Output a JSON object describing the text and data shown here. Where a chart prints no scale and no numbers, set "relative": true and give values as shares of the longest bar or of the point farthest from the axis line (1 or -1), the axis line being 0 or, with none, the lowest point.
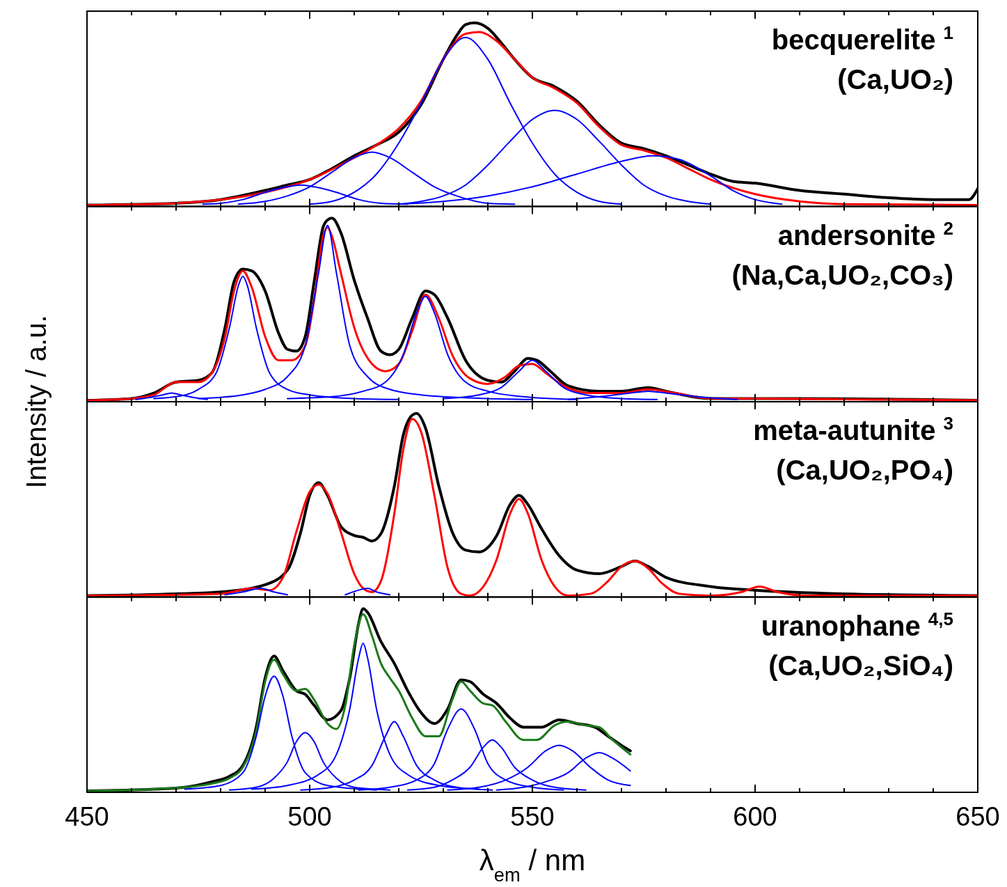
{
  "chart_data": [
    {
      "type": "line",
      "relative": true,
      "title": "becquerelite $^{1}$",
      "subtitle": "(Ca,UO₂)",
      "xlim": [
        450,
        650
      ],
      "xticks": [
        450,
        {
          "value": 460,
          "label": null
        },
        {
          "value": 470,
          "label": null
        },
        {
          "value": 480,
          "label": null
        },
        {
          "value": 490,
          "label": null
        },
        500,
        {
          "value": 510,
          "label": null
        },
        {
          "value": 520,
          "label": null
        },
        {
          "value": 530,
          "label": null
        },
        {
          "value": 540,
          "label": null
        },
        550,
        {
          "value": 560,
          "label": null
        },
        {
          "value": 570,
          "label": null
        },
        {
          "value": 580,
          "label": null
        },
        {
          "value": 590,
          "label": null
        },
        600,
        {
          "value": 610,
          "label": null
        },
        {
          "value": 620,
          "label": null
        },
        {
          "value": 630,
          "label": null
        },
        {
          "value": 640,
          "label": null
        },
        650
      ],
      "tick_labels": false,
      "series": [
        {
          "color": "#000000",
          "x": [
            450,
            470,
            480,
            490,
            495,
            500,
            505,
            510,
            515,
            520,
            525,
            530,
            533,
            535,
            537,
            540,
            543,
            546,
            550,
            555,
            560,
            565,
            570,
            575,
            580,
            585,
            590,
            595,
            600,
            610,
            620,
            630,
            640,
            648,
            650
          ],
          "values": [
            0,
            0.01,
            0.03,
            0.08,
            0.11,
            0.14,
            0.2,
            0.27,
            0.33,
            0.4,
            0.55,
            0.8,
            0.93,
            0.99,
            1,
            0.97,
            0.89,
            0.8,
            0.7,
            0.65,
            0.57,
            0.44,
            0.34,
            0.31,
            0.27,
            0.22,
            0.17,
            0.13,
            0.12,
            0.08,
            0.06,
            0.04,
            0.03,
            0.03,
            0.09
          ]
        },
        {
          "color": "#ff0000",
          "x": [
            450,
            470,
            480,
            490,
            500,
            510,
            515,
            520,
            525,
            530,
            535,
            538,
            542,
            546,
            550,
            555,
            560,
            565,
            570,
            575,
            580,
            585,
            590,
            600,
            610,
            620,
            650
          ],
          "values": [
            0,
            0.01,
            0.03,
            0.07,
            0.14,
            0.26,
            0.33,
            0.42,
            0.57,
            0.8,
            0.94,
            0.95,
            0.9,
            0.8,
            0.7,
            0.64,
            0.56,
            0.43,
            0.33,
            0.3,
            0.26,
            0.2,
            0.14,
            0.06,
            0.02,
            0.005,
            0
          ]
        },
        {
          "color": "#0000ff",
          "x": [
            476,
            480,
            485,
            490,
            495,
            498,
            501,
            506,
            511,
            516,
            522
          ],
          "values": [
            0.005,
            0.01,
            0.03,
            0.07,
            0.1,
            0.11,
            0.1,
            0.07,
            0.03,
            0.01,
            0.005
          ]
        },
        {
          "color": "#0000ff",
          "x": [
            484,
            490,
            495,
            500,
            505,
            510,
            514,
            518,
            523,
            528,
            533,
            540,
            546
          ],
          "values": [
            0.005,
            0.02,
            0.05,
            0.1,
            0.18,
            0.26,
            0.29,
            0.26,
            0.18,
            0.1,
            0.05,
            0.01,
            0.005
          ]
        },
        {
          "color": "#0000ff",
          "x": [
            500,
            505,
            510,
            515,
            520,
            525,
            530,
            535,
            540,
            545,
            550,
            555,
            560,
            565,
            570
          ],
          "values": [
            0.005,
            0.02,
            0.07,
            0.17,
            0.34,
            0.56,
            0.8,
            0.92,
            0.8,
            0.56,
            0.34,
            0.17,
            0.07,
            0.02,
            0.005
          ]
        },
        {
          "color": "#0000ff",
          "x": [
            520,
            525,
            530,
            535,
            540,
            545,
            550,
            555,
            560,
            565,
            570,
            575,
            580,
            585,
            590
          ],
          "values": [
            0.005,
            0.02,
            0.05,
            0.11,
            0.22,
            0.35,
            0.47,
            0.52,
            0.47,
            0.35,
            0.22,
            0.11,
            0.05,
            0.02,
            0.005
          ]
        },
        {
          "color": "#0000ff",
          "x": [
            520,
            530,
            540,
            550,
            560,
            570,
            577,
            583,
            590,
            595,
            600,
            606
          ],
          "values": [
            0.005,
            0.02,
            0.05,
            0.1,
            0.17,
            0.24,
            0.27,
            0.25,
            0.16,
            0.08,
            0.03,
            0.005
          ]
        }
      ]
    },
    {
      "type": "line",
      "relative": true,
      "title": "andersonite $^{2}$",
      "subtitle": "(Na,Ca,UO₂,CO₃)",
      "ylabel": "Intensity / a.u.",
      "xlim": [
        450,
        650
      ],
      "xticks": [
        450,
        {
          "value": 460,
          "label": null
        },
        {
          "value": 470,
          "label": null
        },
        {
          "value": 480,
          "label": null
        },
        {
          "value": 490,
          "label": null
        },
        500,
        {
          "value": 510,
          "label": null
        },
        {
          "value": 520,
          "label": null
        },
        {
          "value": 530,
          "label": null
        },
        {
          "value": 540,
          "label": null
        },
        550,
        {
          "value": 560,
          "label": null
        },
        {
          "value": 570,
          "label": null
        },
        {
          "value": 580,
          "label": null
        },
        {
          "value": 590,
          "label": null
        },
        600,
        {
          "value": 610,
          "label": null
        },
        {
          "value": 620,
          "label": null
        },
        {
          "value": 630,
          "label": null
        },
        {
          "value": 640,
          "label": null
        },
        650
      ],
      "tick_labels": false,
      "series": [
        {
          "color": "#000000",
          "x": [
            450,
            460,
            465,
            470,
            475,
            478,
            481,
            483,
            485,
            487,
            490,
            493,
            495,
            497,
            499,
            501,
            503,
            504,
            505,
            507,
            510,
            513,
            516,
            518,
            520,
            523,
            526,
            528,
            531,
            535,
            540,
            543,
            546,
            549,
            551,
            554,
            558,
            565,
            570,
            576,
            580,
            590,
            600,
            610,
            650
          ],
          "values": [
            0,
            0.01,
            0.04,
            0.1,
            0.11,
            0.15,
            0.4,
            0.65,
            0.72,
            0.71,
            0.6,
            0.37,
            0.28,
            0.27,
            0.35,
            0.65,
            0.95,
            0.99,
            1,
            0.92,
            0.66,
            0.45,
            0.27,
            0.25,
            0.28,
            0.45,
            0.6,
            0.58,
            0.45,
            0.22,
            0.11,
            0.1,
            0.16,
            0.23,
            0.22,
            0.16,
            0.08,
            0.05,
            0.05,
            0.07,
            0.05,
            0.01,
            0.01,
            0.01,
            0
          ]
        },
        {
          "color": "#ff0000",
          "x": [
            450,
            460,
            465,
            470,
            475,
            478,
            481,
            483,
            485,
            487,
            490,
            493,
            496,
            499,
            501,
            503,
            504,
            505,
            507,
            510,
            514,
            517,
            520,
            523,
            526,
            529,
            532,
            536,
            540,
            544,
            547,
            550,
            553,
            557,
            563,
            570,
            576,
            582,
            590,
            600,
            650
          ],
          "values": [
            0,
            0.01,
            0.03,
            0.1,
            0.1,
            0.15,
            0.35,
            0.6,
            0.71,
            0.62,
            0.35,
            0.22,
            0.22,
            0.3,
            0.55,
            0.9,
            0.95,
            0.9,
            0.7,
            0.4,
            0.2,
            0.16,
            0.2,
            0.38,
            0.58,
            0.45,
            0.25,
            0.12,
            0.09,
            0.13,
            0.19,
            0.2,
            0.15,
            0.08,
            0.04,
            0.04,
            0.06,
            0.04,
            0.01,
            0.01,
            0
          ]
        },
        {
          "color": "#0000ff",
          "x": [
            461,
            464,
            467,
            469,
            471,
            474,
            477
          ],
          "values": [
            0.005,
            0.015,
            0.03,
            0.04,
            0.03,
            0.015,
            0.005
          ]
        },
        {
          "color": "#0000ff",
          "x": [
            465,
            470,
            475,
            479,
            482,
            484,
            485,
            486,
            488,
            491,
            495,
            500,
            510,
            520
          ],
          "values": [
            0.01,
            0.02,
            0.06,
            0.15,
            0.4,
            0.63,
            0.68,
            0.63,
            0.4,
            0.15,
            0.06,
            0.03,
            0.01,
            0.005
          ]
        },
        {
          "color": "#0000ff",
          "x": [
            475,
            485,
            490,
            495,
            499,
            502,
            504,
            506,
            509,
            513,
            518,
            525,
            540,
            550
          ],
          "values": [
            0.01,
            0.03,
            0.06,
            0.13,
            0.3,
            0.7,
            0.96,
            0.7,
            0.3,
            0.13,
            0.06,
            0.03,
            0.01,
            0.005
          ]
        },
        {
          "color": "#0000ff",
          "x": [
            495,
            505,
            512,
            517,
            521,
            524,
            526,
            528,
            531,
            535,
            540,
            548,
            560
          ],
          "values": [
            0.01,
            0.02,
            0.05,
            0.1,
            0.25,
            0.48,
            0.57,
            0.48,
            0.25,
            0.1,
            0.05,
            0.02,
            0.005
          ]
        },
        {
          "color": "#0000ff",
          "x": [
            530,
            538,
            543,
            547,
            550,
            553,
            557,
            562,
            570,
            578
          ],
          "values": [
            0.01,
            0.03,
            0.07,
            0.16,
            0.22,
            0.16,
            0.07,
            0.03,
            0.01,
            0.005
          ]
        },
        {
          "color": "#0000ff",
          "x": [
            558,
            565,
            572,
            576,
            580,
            587,
            596
          ],
          "values": [
            0.005,
            0.02,
            0.04,
            0.05,
            0.04,
            0.02,
            0.005
          ]
        }
      ]
    },
    {
      "type": "line",
      "relative": true,
      "title": "meta-autunite $^{3}$",
      "subtitle": "(Ca,UO₂,PO₄)",
      "xlim": [
        450,
        650
      ],
      "xticks": [
        450,
        {
          "value": 460,
          "label": null
        },
        {
          "value": 470,
          "label": null
        },
        {
          "value": 480,
          "label": null
        },
        {
          "value": 490,
          "label": null
        },
        500,
        {
          "value": 510,
          "label": null
        },
        {
          "value": 520,
          "label": null
        },
        {
          "value": 530,
          "label": null
        },
        {
          "value": 540,
          "label": null
        },
        550,
        {
          "value": 560,
          "label": null
        },
        {
          "value": 570,
          "label": null
        },
        {
          "value": 580,
          "label": null
        },
        {
          "value": 590,
          "label": null
        },
        600,
        {
          "value": 610,
          "label": null
        },
        {
          "value": 620,
          "label": null
        },
        {
          "value": 630,
          "label": null
        },
        {
          "value": 640,
          "label": null
        },
        650
      ],
      "tick_labels": false,
      "series": [
        {
          "color": "#000000",
          "x": [
            450,
            470,
            480,
            490,
            495,
            498,
            500,
            502,
            504,
            507,
            510,
            512,
            514,
            516,
            519,
            521,
            523,
            524,
            526,
            529,
            532,
            535,
            538,
            542,
            545,
            547,
            549,
            552,
            556,
            560,
            565,
            570,
            573,
            576,
            580,
            590,
            600,
            620,
            650
          ],
          "values": [
            0,
            0.01,
            0.02,
            0.06,
            0.14,
            0.35,
            0.55,
            0.62,
            0.55,
            0.38,
            0.33,
            0.32,
            0.3,
            0.34,
            0.6,
            0.88,
            0.99,
            1,
            0.92,
            0.6,
            0.35,
            0.25,
            0.24,
            0.33,
            0.5,
            0.55,
            0.5,
            0.37,
            0.22,
            0.14,
            0.12,
            0.16,
            0.19,
            0.16,
            0.1,
            0.05,
            0.03,
            0.01,
            0
          ]
        },
        {
          "color": "#ff0000",
          "x": [
            450,
            480,
            487,
            491,
            494,
            497,
            500,
            502,
            504,
            507,
            510,
            512,
            514,
            516,
            519,
            521,
            523,
            525,
            528,
            531,
            534,
            536,
            539,
            542,
            545,
            547,
            549,
            552,
            555,
            558,
            563,
            567,
            570,
            573,
            576,
            579,
            583,
            590,
            597,
            601,
            605,
            612,
            650
          ],
          "values": [
            0,
            0.01,
            0.04,
            0.03,
            0.1,
            0.35,
            0.57,
            0.61,
            0.56,
            0.35,
            0.12,
            0.04,
            0.02,
            0.08,
            0.45,
            0.8,
            0.97,
            0.9,
            0.55,
            0.15,
            0.01,
            0,
            0.05,
            0.2,
            0.45,
            0.53,
            0.45,
            0.2,
            0.05,
            0,
            0.01,
            0.08,
            0.16,
            0.19,
            0.15,
            0.07,
            0.01,
            0,
            0.02,
            0.05,
            0.02,
            0,
            0
          ]
        },
        {
          "color": "#0000ff",
          "x": [
            481,
            485,
            489,
            492,
            495
          ],
          "values": [
            0.005,
            0.02,
            0.04,
            0.02,
            0.005
          ]
        },
        {
          "color": "#0000ff",
          "x": [
            508,
            511,
            513,
            515,
            518
          ],
          "values": [
            0.005,
            0.03,
            0.04,
            0.02,
            0.005
          ]
        }
      ]
    },
    {
      "type": "line",
      "relative": true,
      "title": "uranophane $^{4,5}$",
      "subtitle": "(Ca,UO₂,SiO₄)",
      "xlabel": "λ$_{em}$ / nm",
      "xlim": [
        450,
        650
      ],
      "xticks": [
        450,
        {
          "value": 460,
          "label": null
        },
        {
          "value": 470,
          "label": null
        },
        {
          "value": 480,
          "label": null
        },
        {
          "value": 490,
          "label": null
        },
        500,
        {
          "value": 510,
          "label": null
        },
        {
          "value": 520,
          "label": null
        },
        {
          "value": 530,
          "label": null
        },
        {
          "value": 540,
          "label": null
        },
        550,
        {
          "value": 560,
          "label": null
        },
        {
          "value": 570,
          "label": null
        },
        {
          "value": 580,
          "label": null
        },
        {
          "value": 590,
          "label": null
        },
        600,
        {
          "value": 610,
          "label": null
        },
        {
          "value": 620,
          "label": null
        },
        {
          "value": 630,
          "label": null
        },
        {
          "value": 640,
          "label": null
        },
        650
      ],
      "tick_labels": "x",
      "series": [
        {
          "color": "#000000",
          "x": [
            450,
            465,
            472,
            478,
            482,
            485,
            488,
            490,
            492,
            494,
            497,
            499,
            501,
            504,
            507,
            509,
            511,
            512,
            513,
            516,
            519,
            522,
            525,
            528,
            531,
            534,
            536,
            539,
            542,
            545,
            548,
            552,
            556,
            560,
            564,
            567,
            570,
            572
          ],
          "values": [
            0,
            0.01,
            0.02,
            0.05,
            0.08,
            0.14,
            0.35,
            0.62,
            0.74,
            0.66,
            0.55,
            0.53,
            0.47,
            0.39,
            0.44,
            0.62,
            0.92,
            1,
            0.98,
            0.82,
            0.7,
            0.55,
            0.43,
            0.37,
            0.45,
            0.61,
            0.6,
            0.53,
            0.48,
            0.4,
            0.35,
            0.35,
            0.39,
            0.37,
            0.35,
            0.3,
            0.25,
            0.22
          ]
        },
        {
          "color": "#1a7a1a",
          "x": [
            450,
            465,
            472,
            478,
            482,
            485,
            488,
            490,
            492,
            494,
            497,
            499,
            501,
            504,
            506,
            508,
            510,
            512,
            514,
            516,
            518,
            520,
            523,
            526,
            529,
            532,
            534,
            536,
            539,
            541,
            544,
            548,
            551,
            555,
            558,
            562,
            565,
            568,
            572
          ],
          "values": [
            0,
            0.01,
            0.02,
            0.04,
            0.07,
            0.13,
            0.33,
            0.6,
            0.72,
            0.64,
            0.55,
            0.56,
            0.5,
            0.37,
            0.34,
            0.47,
            0.8,
            0.97,
            0.85,
            0.7,
            0.62,
            0.55,
            0.4,
            0.3,
            0.3,
            0.5,
            0.6,
            0.55,
            0.48,
            0.47,
            0.38,
            0.28,
            0.28,
            0.36,
            0.38,
            0.36,
            0.35,
            0.28,
            0.2
          ]
        },
        {
          "color": "#0000ff",
          "x": [
            472,
            480,
            485,
            488,
            490,
            492,
            494,
            496,
            499,
            504,
            515
          ],
          "values": [
            0.01,
            0.03,
            0.1,
            0.3,
            0.52,
            0.63,
            0.52,
            0.3,
            0.1,
            0.03,
            0.005
          ]
        },
        {
          "color": "#0000ff",
          "x": [
            482,
            488,
            492,
            495,
            497,
            499,
            501,
            503,
            506,
            510,
            518
          ],
          "values": [
            0.005,
            0.02,
            0.07,
            0.16,
            0.27,
            0.32,
            0.27,
            0.16,
            0.07,
            0.02,
            0.005
          ]
        },
        {
          "color": "#0000ff",
          "x": [
            487,
            495,
            502,
            506,
            509,
            511,
            512,
            513,
            515,
            518,
            522,
            529,
            538
          ],
          "values": [
            0.01,
            0.03,
            0.09,
            0.2,
            0.45,
            0.73,
            0.81,
            0.73,
            0.45,
            0.2,
            0.09,
            0.03,
            0.01
          ]
        },
        {
          "color": "#0000ff",
          "x": [
            498,
            505,
            510,
            514,
            517,
            519,
            521,
            524,
            528,
            533,
            541
          ],
          "values": [
            0.005,
            0.02,
            0.06,
            0.14,
            0.3,
            0.38,
            0.3,
            0.14,
            0.06,
            0.02,
            0.005
          ]
        },
        {
          "color": "#0000ff",
          "x": [
            511,
            518,
            524,
            528,
            531,
            534,
            537,
            540,
            544,
            550,
            557
          ],
          "values": [
            0.005,
            0.02,
            0.06,
            0.15,
            0.34,
            0.45,
            0.34,
            0.15,
            0.06,
            0.02,
            0.005
          ]
        },
        {
          "color": "#0000ff",
          "x": [
            522,
            528,
            532,
            536,
            539,
            541,
            543,
            546,
            550,
            555,
            562
          ],
          "values": [
            0.005,
            0.02,
            0.06,
            0.13,
            0.24,
            0.28,
            0.24,
            0.13,
            0.06,
            0.02,
            0.005
          ]
        },
        {
          "color": "#0000ff",
          "x": [
            531,
            538,
            544,
            549,
            553,
            556,
            559,
            563,
            567,
            572
          ],
          "values": [
            0.005,
            0.02,
            0.06,
            0.13,
            0.22,
            0.25,
            0.22,
            0.13,
            0.06,
            0.03
          ]
        },
        {
          "color": "#0000ff",
          "x": [
            542,
            548,
            553,
            558,
            562,
            565,
            568,
            572
          ],
          "values": [
            0.005,
            0.02,
            0.05,
            0.1,
            0.18,
            0.21,
            0.18,
            0.11
          ]
        }
      ]
    }
  ]
}
